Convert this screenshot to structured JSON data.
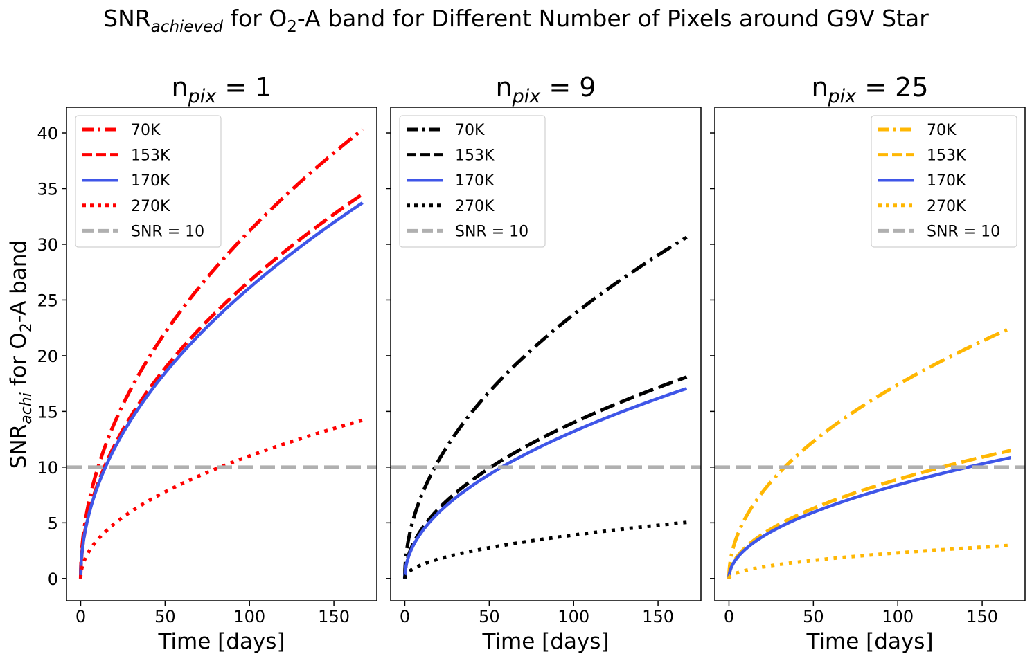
{
  "figure": {
    "title_main": "SNR",
    "title_sub": "achieved",
    "title_mid": " for O",
    "title_o2_sub": "2",
    "title_rest": "-A band for Different Number of Pixels around G9V Star"
  },
  "y_axis": {
    "label_main": "SNR",
    "label_sub": "achi",
    "label_mid": " for O",
    "label_o2_sub": "2",
    "label_rest": "-A band"
  },
  "chart_data": [
    {
      "type": "line",
      "title_main": "n",
      "title_sub": "pix",
      "title_rest": " = 1",
      "xlabel": "Time [days]",
      "xlim": [
        -8.4,
        175.4
      ],
      "ylim": [
        -2.0,
        42.3
      ],
      "xticks": [
        "0",
        "50",
        "100",
        "150"
      ],
      "yticks": [
        "0",
        "5",
        "10",
        "15",
        "20",
        "25",
        "30",
        "35",
        "40"
      ],
      "legend_position": "upper-left",
      "series": [
        {
          "name": "70K",
          "style": "dashdot",
          "color": "#ff0000",
          "k": 3.12
        },
        {
          "name": "153K",
          "style": "dashed",
          "color": "#ff0000",
          "k": 2.67
        },
        {
          "name": "170K",
          "style": "solid",
          "color": "#3f56e8",
          "k": 2.61
        },
        {
          "name": "270K",
          "style": "dotted",
          "color": "#ff0000",
          "k": 1.1
        },
        {
          "name": "SNR = 10",
          "style": "hline",
          "color": "#b0b0b0",
          "y": 10
        }
      ]
    },
    {
      "type": "line",
      "title_main": "n",
      "title_sub": "pix",
      "title_rest": " = 9",
      "xlabel": "Time [days]",
      "xlim": [
        -8.4,
        175.4
      ],
      "ylim": [
        -2.0,
        42.3
      ],
      "xticks": [
        "0",
        "50",
        "100",
        "150"
      ],
      "yticks": [],
      "legend_position": "upper-left",
      "series": [
        {
          "name": "70K",
          "style": "dashdot",
          "color": "#000000",
          "k": 2.37
        },
        {
          "name": "153K",
          "style": "dashed",
          "color": "#000000",
          "k": 1.4
        },
        {
          "name": "170K",
          "style": "solid",
          "color": "#3f56e8",
          "k": 1.32
        },
        {
          "name": "270K",
          "style": "dotted",
          "color": "#000000",
          "k": 0.39
        },
        {
          "name": "SNR = 10",
          "style": "hline",
          "color": "#b0b0b0",
          "y": 10
        }
      ]
    },
    {
      "type": "line",
      "title_main": "n",
      "title_sub": "pix",
      "title_rest": " = 25",
      "xlabel": "Time [days]",
      "xlim": [
        -8.4,
        175.4
      ],
      "ylim": [
        -2.0,
        42.3
      ],
      "xticks": [
        "0",
        "50",
        "100",
        "150"
      ],
      "yticks": [],
      "legend_position": "upper-right",
      "series": [
        {
          "name": "70K",
          "style": "dashdot",
          "color": "#ffb703",
          "k": 1.74
        },
        {
          "name": "153K",
          "style": "dashed",
          "color": "#ffb703",
          "k": 0.89
        },
        {
          "name": "170K",
          "style": "solid",
          "color": "#3f56e8",
          "k": 0.84
        },
        {
          "name": "270K",
          "style": "dotted",
          "color": "#ffb703",
          "k": 0.23
        },
        {
          "name": "SNR = 10",
          "style": "hline",
          "color": "#b0b0b0",
          "y": 10
        }
      ]
    }
  ]
}
